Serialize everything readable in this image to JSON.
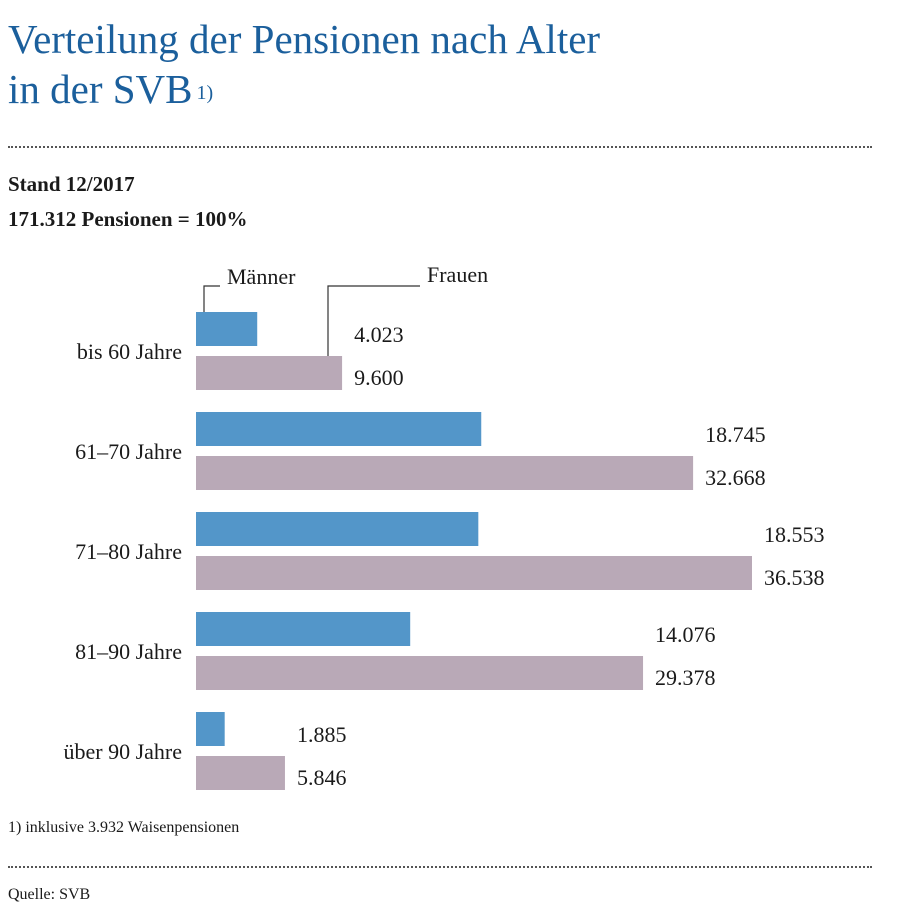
{
  "title_line1": "Verteilung der Pensionen nach Alter",
  "title_line2": "in der SVB",
  "title_footnote_mark": "1)",
  "subtitle_stand": "Stand 12/2017",
  "subtitle_total": "171.312 Pensionen = 100%",
  "footnote": "1) inklusive 3.932 Waisenpensionen",
  "source": "Quelle: SVB",
  "chart_data": {
    "type": "bar",
    "orientation": "horizontal",
    "categories": [
      "bis 60 Jahre",
      "61–70 Jahre",
      "71–80 Jahre",
      "81–90 Jahre",
      "über 90 Jahre"
    ],
    "series": [
      {
        "name": "Männer",
        "color": "#5396c9",
        "values": [
          4023,
          18745,
          18553,
          14076,
          1885
        ],
        "labels": [
          "4.023",
          "18.745",
          "18.553",
          "14.076",
          "1.885"
        ]
      },
      {
        "name": "Frauen",
        "color": "#b9a9b7",
        "values": [
          9600,
          32668,
          36538,
          29378,
          5846
        ],
        "labels": [
          "9.600",
          "32.668",
          "36.538",
          "29.378",
          "5.846"
        ]
      }
    ],
    "xlim": [
      0,
      36538
    ],
    "grid": false,
    "legend": "leader-lines-top"
  }
}
